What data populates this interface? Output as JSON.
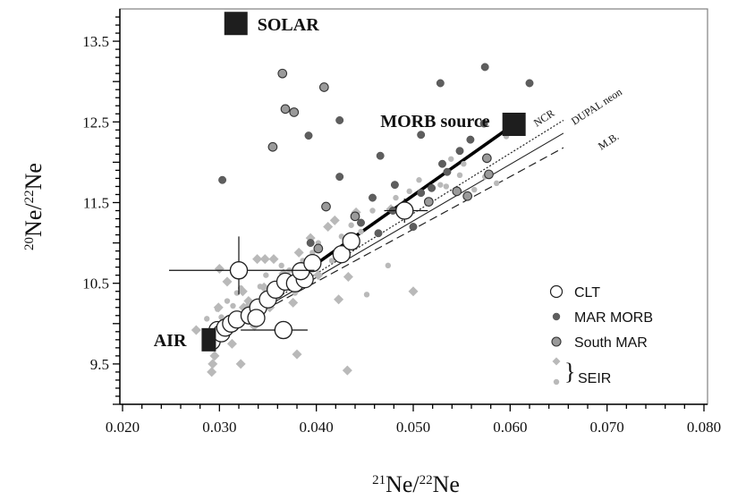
{
  "chart_data": {
    "type": "scatter",
    "title": "",
    "xlabel": {
      "sup": "21",
      "base": "Ne/",
      "sup2": "22",
      "base2": "Ne"
    },
    "ylabel": {
      "sup": "20",
      "base": "Ne/",
      "sup2": "22",
      "base2": "Ne"
    },
    "xlim": [
      0.02,
      0.08
    ],
    "ylim": [
      9.0,
      13.9
    ],
    "xticks": [
      "0.020",
      "0.030",
      "0.040",
      "0.050",
      "0.060",
      "0.070",
      "0.080"
    ],
    "xtick_values": [
      0.02,
      0.03,
      0.04,
      0.05,
      0.06,
      0.07,
      0.08
    ],
    "yticks": [
      "9.5",
      "10.5",
      "11.5",
      "12.5",
      "13.5"
    ],
    "ytick_values": [
      9.5,
      10.5,
      11.5,
      12.5,
      13.5
    ],
    "endmembers": [
      {
        "label": "SOLAR",
        "x": 0.0317,
        "y": 13.72
      },
      {
        "label": "MORB source",
        "x": 0.0604,
        "y": 12.47
      },
      {
        "label": "AIR",
        "x": 0.0289,
        "y": 9.8
      }
    ],
    "reference_lines": [
      {
        "label": "NCR",
        "x": [
          0.029,
          0.0655
        ],
        "y": [
          9.8,
          12.52
        ],
        "style": "dotted"
      },
      {
        "label": "DUPAL neon",
        "x": [
          0.029,
          0.0655
        ],
        "y": [
          9.8,
          12.36
        ],
        "style": "solid-thin"
      },
      {
        "label": "M.B.",
        "x": [
          0.029,
          0.0655
        ],
        "y": [
          9.8,
          12.18
        ],
        "style": "dashed"
      }
    ],
    "clt_trend": {
      "x": [
        0.0289,
        0.0604
      ],
      "y": [
        9.8,
        12.47
      ]
    },
    "series": [
      {
        "name": "CLT",
        "marker": "open-circle",
        "points": [
          [
            0.0292,
            9.78
          ],
          [
            0.0298,
            9.92
          ],
          [
            0.0302,
            9.88
          ],
          [
            0.0306,
            9.95
          ],
          [
            0.0312,
            10.0
          ],
          [
            0.0318,
            10.05
          ],
          [
            0.0331,
            10.1
          ],
          [
            0.034,
            10.2
          ],
          [
            0.035,
            10.3
          ],
          [
            0.0358,
            10.42
          ],
          [
            0.0368,
            10.52
          ],
          [
            0.0378,
            10.5
          ],
          [
            0.0388,
            10.55
          ],
          [
            0.0384,
            10.65
          ],
          [
            0.0396,
            10.75
          ],
          [
            0.0426,
            10.86
          ],
          [
            0.0436,
            11.02
          ],
          [
            0.0491,
            11.4
          ],
          [
            0.032,
            10.66
          ],
          [
            0.0338,
            10.07
          ],
          [
            0.0366,
            9.92
          ]
        ]
      },
      {
        "name": "MAR MORB",
        "marker": "dark-dot",
        "points": [
          [
            0.0303,
            11.78
          ],
          [
            0.0392,
            12.33
          ],
          [
            0.0424,
            12.52
          ],
          [
            0.0466,
            12.08
          ],
          [
            0.0528,
            12.98
          ],
          [
            0.0574,
            13.18
          ],
          [
            0.062,
            12.98
          ],
          [
            0.0573,
            12.48
          ],
          [
            0.0508,
            11.62
          ],
          [
            0.0492,
            11.46
          ],
          [
            0.0481,
            11.72
          ],
          [
            0.0458,
            11.56
          ],
          [
            0.0446,
            11.25
          ],
          [
            0.0535,
            11.88
          ],
          [
            0.0548,
            12.14
          ],
          [
            0.0559,
            12.28
          ],
          [
            0.0508,
            12.34
          ],
          [
            0.0479,
            11.4
          ],
          [
            0.0519,
            11.68
          ],
          [
            0.0464,
            11.12
          ],
          [
            0.0424,
            11.82
          ],
          [
            0.0394,
            11.0
          ],
          [
            0.053,
            11.98
          ],
          [
            0.05,
            11.2
          ]
        ]
      },
      {
        "name": "South MAR",
        "marker": "mid-grey-circle",
        "points": [
          [
            0.0365,
            13.1
          ],
          [
            0.0368,
            12.66
          ],
          [
            0.0377,
            12.62
          ],
          [
            0.0408,
            12.93
          ],
          [
            0.0355,
            12.19
          ],
          [
            0.041,
            11.45
          ],
          [
            0.044,
            11.33
          ],
          [
            0.0556,
            11.58
          ],
          [
            0.0576,
            12.05
          ],
          [
            0.0578,
            11.85
          ],
          [
            0.0545,
            11.64
          ],
          [
            0.0516,
            11.51
          ],
          [
            0.0402,
            10.93
          ]
        ]
      },
      {
        "name": "SEIR",
        "marker": "light-diamond",
        "points": [
          [
            0.0292,
            9.4
          ],
          [
            0.0293,
            9.5
          ],
          [
            0.0295,
            9.6
          ],
          [
            0.0299,
            10.2
          ],
          [
            0.03,
            10.68
          ],
          [
            0.0308,
            10.52
          ],
          [
            0.0313,
            9.75
          ],
          [
            0.0322,
            9.5
          ],
          [
            0.0324,
            10.4
          ],
          [
            0.0325,
            10.2
          ],
          [
            0.033,
            10.28
          ],
          [
            0.0339,
            10.8
          ],
          [
            0.0347,
            10.8
          ],
          [
            0.0356,
            10.8
          ],
          [
            0.0346,
            10.45
          ],
          [
            0.0352,
            10.2
          ],
          [
            0.0361,
            10.36
          ],
          [
            0.0366,
            10.62
          ],
          [
            0.0376,
            10.26
          ],
          [
            0.038,
            9.62
          ],
          [
            0.0382,
            10.88
          ],
          [
            0.0394,
            11.06
          ],
          [
            0.0402,
            10.6
          ],
          [
            0.0412,
            11.2
          ],
          [
            0.0419,
            11.28
          ],
          [
            0.0423,
            10.3
          ],
          [
            0.0432,
            9.42
          ],
          [
            0.0433,
            10.58
          ],
          [
            0.0441,
            11.38
          ],
          [
            0.0477,
            11.42
          ],
          [
            0.05,
            10.4
          ],
          [
            0.0276,
            9.92
          ],
          [
            0.0322,
            10.02
          ],
          [
            0.0336,
            9.97
          ]
        ]
      },
      {
        "name": "SEIR",
        "marker": "light-dot",
        "points": [
          [
            0.0287,
            10.06
          ],
          [
            0.0298,
            10.18
          ],
          [
            0.0302,
            10.08
          ],
          [
            0.0308,
            10.28
          ],
          [
            0.0314,
            10.22
          ],
          [
            0.0318,
            10.38
          ],
          [
            0.0322,
            10.44
          ],
          [
            0.033,
            10.24
          ],
          [
            0.0336,
            10.18
          ],
          [
            0.0342,
            10.46
          ],
          [
            0.0348,
            10.6
          ],
          [
            0.0356,
            10.36
          ],
          [
            0.0364,
            10.72
          ],
          [
            0.0372,
            10.66
          ],
          [
            0.0378,
            10.38
          ],
          [
            0.0386,
            10.78
          ],
          [
            0.0396,
            10.88
          ],
          [
            0.0402,
            11.0
          ],
          [
            0.0416,
            10.78
          ],
          [
            0.0426,
            11.08
          ],
          [
            0.0436,
            11.22
          ],
          [
            0.0446,
            11.14
          ],
          [
            0.0452,
            10.36
          ],
          [
            0.0458,
            11.4
          ],
          [
            0.0474,
            10.72
          ],
          [
            0.0482,
            11.56
          ],
          [
            0.0496,
            11.64
          ],
          [
            0.0506,
            11.78
          ],
          [
            0.0514,
            11.52
          ],
          [
            0.0534,
            11.7
          ],
          [
            0.0552,
            11.98
          ],
          [
            0.0563,
            11.66
          ],
          [
            0.0574,
            11.82
          ],
          [
            0.0586,
            11.74
          ],
          [
            0.0596,
            12.32
          ],
          [
            0.0528,
            11.72
          ],
          [
            0.0539,
            12.04
          ],
          [
            0.0548,
            11.84
          ]
        ]
      }
    ],
    "error_bars": [
      {
        "x": 0.032,
        "y": 10.66,
        "xerr": [
          0.0248,
          0.0398
        ],
        "yerr": [
          10.36,
          11.08
        ]
      },
      {
        "x": 0.0366,
        "y": 9.92,
        "xerr": [
          0.0322,
          0.0391
        ],
        "yerr": [
          9.85,
          9.98
        ]
      },
      {
        "x": 0.0491,
        "y": 11.4,
        "xerr": [
          0.047,
          0.0515
        ],
        "yerr": [
          11.25,
          11.55
        ]
      }
    ],
    "legend": {
      "placement": "bottom-right",
      "entries": [
        "CLT",
        "MAR MORB",
        "South MAR",
        "SEIR"
      ]
    },
    "colors": {
      "dark": "#5e5e5e",
      "mid": "#9a9a9a",
      "light": "#b9b9b9",
      "marker_edge": "#333333"
    }
  }
}
